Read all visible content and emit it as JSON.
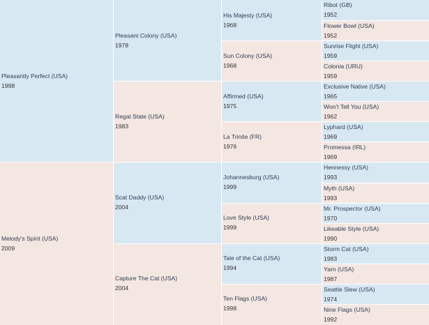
{
  "subject": {
    "sire": {
      "name": "Pleasantly Perfect (USA)",
      "year": "1998",
      "sex": "male"
    },
    "dam": {
      "name": "Melody's Spirit (USA)",
      "year": "2009",
      "sex": "female"
    }
  },
  "gen2": [
    {
      "name": "Pleasant Colony (USA)",
      "year": "1978",
      "sex": "male"
    },
    {
      "name": "Regal State (USA)",
      "year": "1983",
      "sex": "female"
    },
    {
      "name": "Scat Daddy (USA)",
      "year": "2004",
      "sex": "male"
    },
    {
      "name": "Capture The Cat (USA)",
      "year": "2004",
      "sex": "female"
    }
  ],
  "gen3": [
    {
      "name": "His Majesty (USA)",
      "year": "1968",
      "sex": "male"
    },
    {
      "name": "Sun Colony (USA)",
      "year": "1968",
      "sex": "female"
    },
    {
      "name": "Affirmed (USA)",
      "year": "1975",
      "sex": "male"
    },
    {
      "name": "La Trinite (FR)",
      "year": "1976",
      "sex": "female"
    },
    {
      "name": "Johannesburg (USA)",
      "year": "1999",
      "sex": "male"
    },
    {
      "name": "Love Style (USA)",
      "year": "1999",
      "sex": "female"
    },
    {
      "name": "Tale of the Cat (USA)",
      "year": "1994",
      "sex": "male"
    },
    {
      "name": "Ten Flags (USA)",
      "year": "1998",
      "sex": "female"
    }
  ],
  "gen4": [
    {
      "name": "Ribot (GB)",
      "year": "1952",
      "sex": "male"
    },
    {
      "name": "Flower Bowl (USA)",
      "year": "1952",
      "sex": "female"
    },
    {
      "name": "Sunrise Flight (USA)",
      "year": "1959",
      "sex": "male"
    },
    {
      "name": "Colonia (URU)",
      "year": "1959",
      "sex": "female"
    },
    {
      "name": "Exclusive Native (USA)",
      "year": "1965",
      "sex": "male"
    },
    {
      "name": "Won't Tell You (USA)",
      "year": "1962",
      "sex": "female"
    },
    {
      "name": "Lyphard (USA)",
      "year": "1969",
      "sex": "male"
    },
    {
      "name": "Promessa (IRL)",
      "year": "1969",
      "sex": "female"
    },
    {
      "name": "Hennessy (USA)",
      "year": "1993",
      "sex": "male"
    },
    {
      "name": "Myth (USA)",
      "year": "1993",
      "sex": "female"
    },
    {
      "name": "Mr. Prospector (USA)",
      "year": "1970",
      "sex": "male"
    },
    {
      "name": "Likeable Style (USA)",
      "year": "1990",
      "sex": "female"
    },
    {
      "name": "Storm Cat (USA)",
      "year": "1983",
      "sex": "male"
    },
    {
      "name": "Yarn (USA)",
      "year": "1987",
      "sex": "female"
    },
    {
      "name": "Seattle Slew (USA)",
      "year": "1974",
      "sex": "male"
    },
    {
      "name": "Nine Flags (USA)",
      "year": "1992",
      "sex": "female"
    }
  ],
  "colors": {
    "male": "#d8e8f3",
    "female": "#f4e6e1",
    "link": "#2c3e55"
  }
}
